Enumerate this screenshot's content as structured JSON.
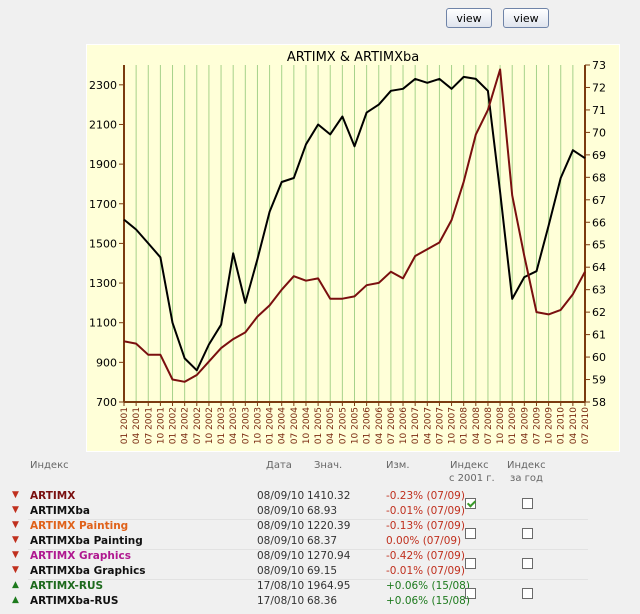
{
  "buttons": {
    "view_1": "view",
    "view_2": "view"
  },
  "chart_data": {
    "type": "line",
    "title": "ARTIMX & ARTIMXba",
    "x_tick_labels": [
      "01 2001",
      "04 2001",
      "07 2001",
      "10 2001",
      "01 2002",
      "04 2002",
      "07 2002",
      "10 2002",
      "01 2003",
      "04 2003",
      "07 2003",
      "10 2003",
      "01 2004",
      "04 2004",
      "07 2004",
      "10 2004",
      "01 2005",
      "04 2005",
      "07 2005",
      "10 2005",
      "01 2006",
      "04 2006",
      "07 2006",
      "10 2006",
      "01 2007",
      "04 2007",
      "07 2007",
      "10 2007",
      "01 2008",
      "04 2008",
      "07 2008",
      "10 2008",
      "01 2009",
      "04 2009",
      "07 2009",
      "10 2009",
      "01 2010",
      "04 2010",
      "07 2010"
    ],
    "y_left": {
      "ticks": [
        700,
        900,
        1100,
        1300,
        1500,
        1700,
        1900,
        2100,
        2300
      ],
      "range": [
        700,
        2400
      ],
      "color": "#000000"
    },
    "y_right": {
      "ticks": [
        58,
        59,
        60,
        61,
        62,
        63,
        64,
        65,
        66,
        67,
        68,
        69,
        70,
        71,
        72,
        73
      ],
      "range": [
        58,
        73
      ],
      "color": "#000000"
    },
    "grid": true,
    "series": [
      {
        "name": "ARTIMX",
        "axis": "left",
        "color": "#000000",
        "values": [
          1620,
          1570,
          1500,
          1430,
          1100,
          920,
          860,
          990,
          1090,
          1450,
          1200,
          1420,
          1660,
          1810,
          1830,
          2000,
          2100,
          2050,
          2140,
          1990,
          2160,
          2200,
          2270,
          2280,
          2330,
          2310,
          2330,
          2280,
          2340,
          2330,
          2270,
          1760,
          1220,
          1330,
          1360,
          1590,
          1830,
          1970,
          1930
        ]
      },
      {
        "name": "ARTIMXba",
        "axis": "right",
        "color": "#7a0f0f",
        "values": [
          60.7,
          60.6,
          60.1,
          60.1,
          59.0,
          58.9,
          59.2,
          59.8,
          60.4,
          60.8,
          61.1,
          61.8,
          62.3,
          63.0,
          63.6,
          63.4,
          63.5,
          62.6,
          62.6,
          62.7,
          63.2,
          63.3,
          63.8,
          63.5,
          64.5,
          64.8,
          65.1,
          66.1,
          67.8,
          69.9,
          71.0,
          72.8,
          67.2,
          64.5,
          62.0,
          61.9,
          62.1,
          62.8,
          63.8
        ]
      }
    ]
  },
  "table": {
    "headers": {
      "index": "Индекс",
      "date": "Дата",
      "value": "Знач.",
      "change": "Изм.",
      "since2001_l1": "Индекс",
      "since2001_l2": "с 2001 г.",
      "year_l1": "Индекс",
      "year_l2": "за год"
    },
    "rows": [
      {
        "arrow": "▼",
        "arrow_color": "#c0301e",
        "name": "ARTIMX",
        "name_color": "#7a0f0f",
        "date": "08/09/10",
        "value": "1410.32",
        "change": "-0.23% (07/09)",
        "change_class": "neg",
        "check2001": true,
        "checkyear": false
      },
      {
        "arrow": "▼",
        "arrow_color": "#c0301e",
        "name": "ARTIMXba",
        "name_color": "#111111",
        "date": "08/09/10",
        "value": "68.93",
        "change": "-0.01% (07/09)",
        "change_class": "neg",
        "check2001": null,
        "checkyear": null
      },
      {
        "arrow": "▼",
        "arrow_color": "#c0301e",
        "name": "ARTIMX Painting",
        "name_color": "#e0621a",
        "date": "08/09/10",
        "value": "1220.39",
        "change": "-0.13% (07/09)",
        "change_class": "neg",
        "check2001": false,
        "checkyear": false
      },
      {
        "arrow": "▼",
        "arrow_color": "#c0301e",
        "name": "ARTIMXba Painting",
        "name_color": "#111111",
        "date": "08/09/10",
        "value": "68.37",
        "change": "0.00% (07/09)",
        "change_class": "zero",
        "check2001": null,
        "checkyear": null
      },
      {
        "arrow": "▼",
        "arrow_color": "#c0301e",
        "name": "ARTIMX Graphics",
        "name_color": "#b01890",
        "date": "08/09/10",
        "value": "1270.94",
        "change": "-0.42% (07/09)",
        "change_class": "neg",
        "check2001": false,
        "checkyear": false
      },
      {
        "arrow": "▼",
        "arrow_color": "#c0301e",
        "name": "ARTIMXba Graphics",
        "name_color": "#111111",
        "date": "08/09/10",
        "value": "69.15",
        "change": "-0.01% (07/09)",
        "change_class": "neg",
        "check2001": null,
        "checkyear": null
      },
      {
        "arrow": "▲",
        "arrow_color": "#1d7a1d",
        "name": "ARTIMX-RUS",
        "name_color": "#1d6a1d",
        "date": "17/08/10",
        "value": "1964.95",
        "change": "+0.06% (15/08)",
        "change_class": "pos",
        "check2001": false,
        "checkyear": false
      },
      {
        "arrow": "▲",
        "arrow_color": "#1d7a1d",
        "name": "ARTIMXba-RUS",
        "name_color": "#111111",
        "date": "17/08/10",
        "value": "68.36",
        "change": "+0.06% (15/08)",
        "change_class": "pos",
        "check2001": null,
        "checkyear": null
      }
    ]
  }
}
